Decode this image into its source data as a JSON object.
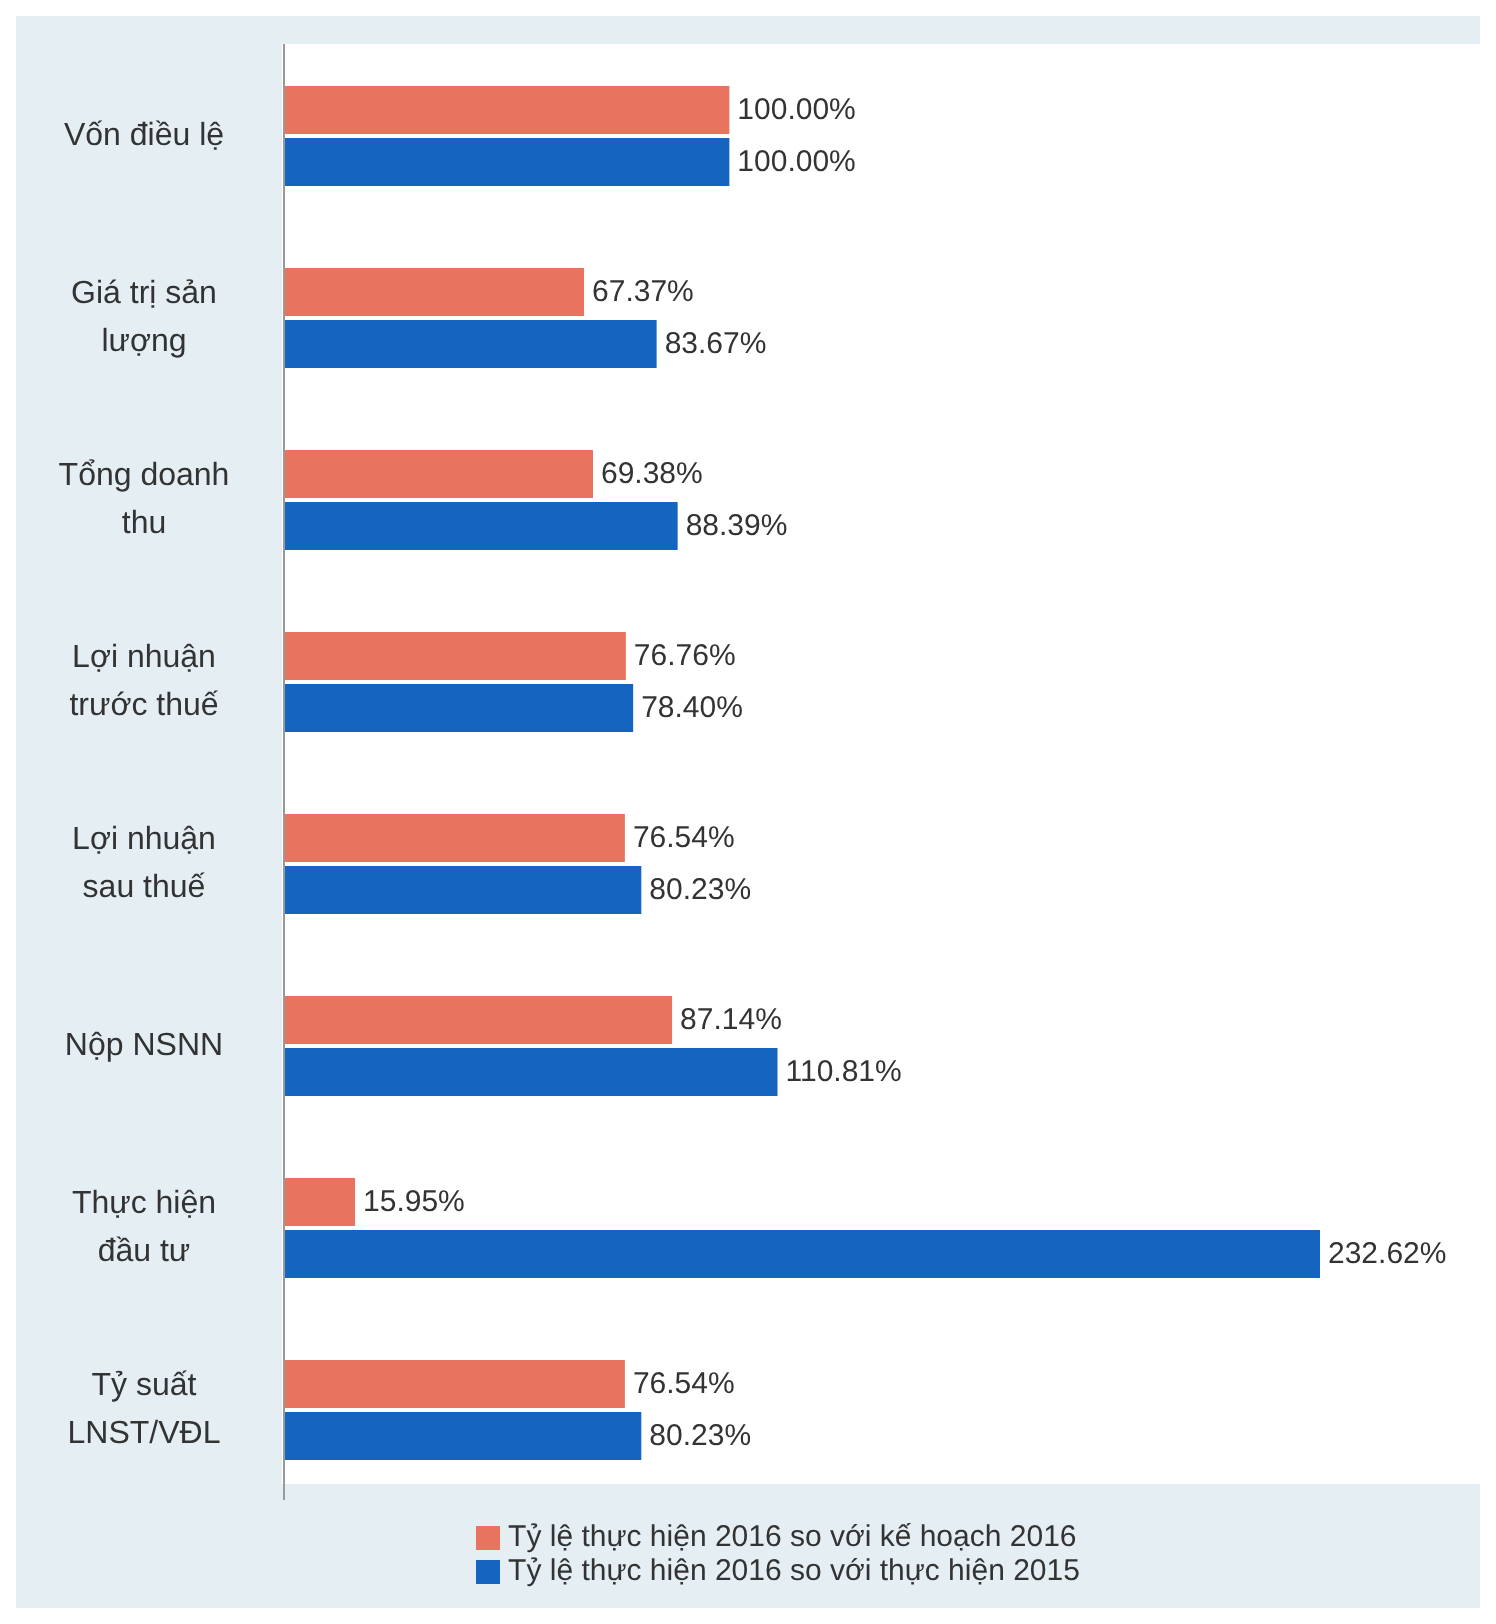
{
  "chart_data": {
    "type": "bar",
    "orientation": "horizontal",
    "categories": [
      "Vốn điều lệ",
      "Giá trị sản lượng",
      "Tổng doanh thu",
      "Lợi nhuận trước thuế",
      "Lợi nhuận sau thuế",
      "Nộp NSNN",
      "Thực hiện đầu tư",
      "Tỷ suất LNST/VĐL"
    ],
    "series": [
      {
        "name": "Tỷ lệ thực hiện 2016 so với kế hoạch 2016",
        "color": "#e8735e",
        "values": [
          100,
          67.37,
          69.38,
          76.76,
          76.54,
          87.14,
          15.95,
          76.54
        ],
        "value_labels": [
          "100.00%",
          "67.37%",
          "69.38%",
          "76.76%",
          "76.54%",
          "87.14%",
          "15.95%",
          "76.54%"
        ]
      },
      {
        "name": "Tỷ lệ thực hiện 2016 so với thực hiện 2015",
        "color": "#1565c0",
        "values": [
          100,
          83.67,
          88.39,
          78.4,
          80.23,
          110.81,
          232.62,
          80.23
        ],
        "value_labels": [
          "100.00%",
          "83.67%",
          "88.39%",
          "78.40%",
          "80.23%",
          "110.81%",
          "232.62%",
          "80.23%"
        ]
      }
    ],
    "legend": "bottom"
  }
}
